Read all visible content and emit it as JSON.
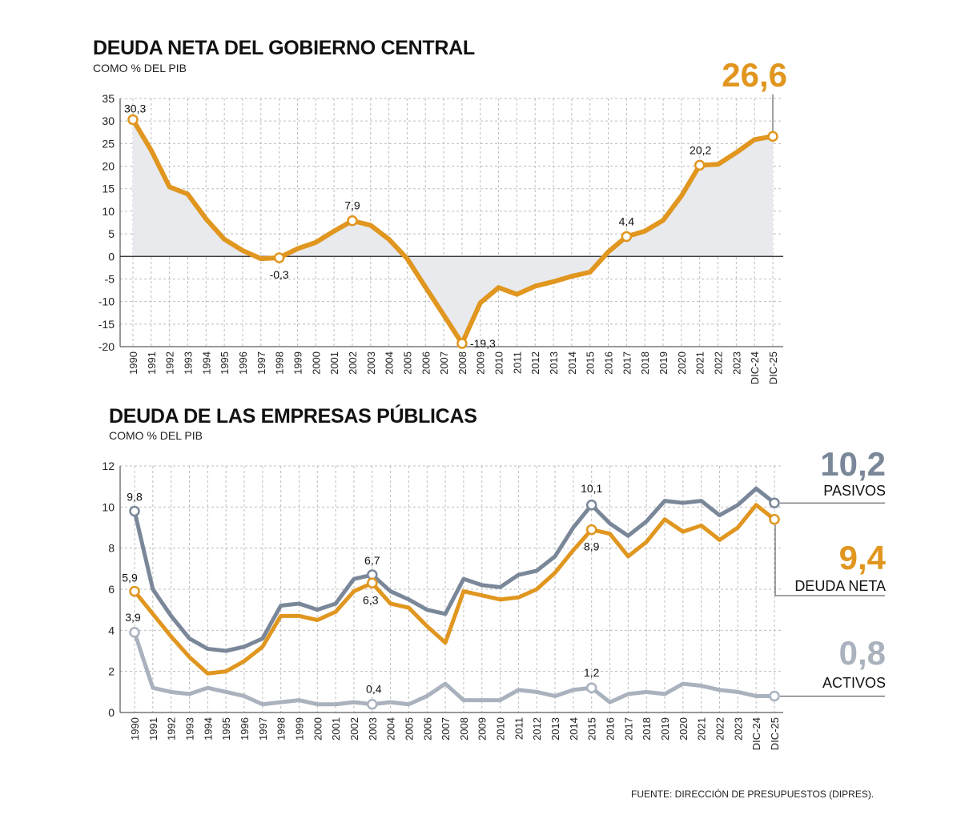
{
  "colors": {
    "orange": "#E0961F",
    "blue_gray": "#7A8799",
    "light_gray": "#A9B2BD",
    "area_fill": "#E8EAEE",
    "grid": "#BDBDBD"
  },
  "source": "FUENTE: DIRECCIÓN DE PRESUPUESTOS (DIPRES).",
  "chart_data": [
    {
      "type": "area",
      "title": "DEUDA NETA DEL GOBIERNO CENTRAL",
      "subtitle": "COMO % DEL PIB",
      "categories": [
        "1990",
        "1991",
        "1992",
        "1993",
        "1994",
        "1995",
        "1996",
        "1997",
        "1998",
        "1999",
        "2000",
        "2001",
        "2002",
        "2003",
        "2004",
        "2005",
        "2006",
        "2007",
        "2008",
        "2009",
        "2010",
        "2011",
        "2012",
        "2013",
        "2014",
        "2015",
        "2016",
        "2017",
        "2018",
        "2019",
        "2020",
        "2021",
        "2022",
        "2023",
        "DIC-24",
        "DIC-25"
      ],
      "ylim": [
        -20,
        35
      ],
      "yticks": [
        35,
        30,
        25,
        20,
        15,
        10,
        5,
        0,
        -5,
        -10,
        -15,
        -20
      ],
      "grid": true,
      "series": [
        {
          "values": [
            30.3,
            23.5,
            15.4,
            13.8,
            8.3,
            3.8,
            1.3,
            -0.5,
            -0.3,
            1.7,
            3.1,
            5.6,
            7.9,
            6.9,
            3.8,
            -0.5,
            -6.8,
            -13.0,
            -19.3,
            -10.3,
            -6.9,
            -8.4,
            -6.6,
            -5.6,
            -4.4,
            -3.5,
            1.0,
            4.4,
            5.6,
            8.0,
            13.4,
            20.2,
            20.4,
            23.0,
            25.9,
            26.6
          ],
          "markers": [
            {
              "index": 0,
              "label": "30,3"
            },
            {
              "index": 8,
              "label": "-0,3"
            },
            {
              "index": 12,
              "label": "7,9"
            },
            {
              "index": 18,
              "label": "-19,3"
            },
            {
              "index": 27,
              "label": "4,4"
            },
            {
              "index": 31,
              "label": "20,2"
            },
            {
              "index": 35,
              "label": ""
            }
          ],
          "end_callout": "26,6"
        }
      ]
    },
    {
      "type": "line",
      "title": "DEUDA DE LAS EMPRESAS PÚBLICAS",
      "subtitle": "COMO % DEL PIB",
      "categories": [
        "1990",
        "1991",
        "1992",
        "1993",
        "1994",
        "1995",
        "1996",
        "1997",
        "1998",
        "1999",
        "2000",
        "2001",
        "2002",
        "2003",
        "2004",
        "2005",
        "2006",
        "2007",
        "2008",
        "2009",
        "2010",
        "2011",
        "2012",
        "2013",
        "2014",
        "2015",
        "2016",
        "2017",
        "2018",
        "2019",
        "2020",
        "2021",
        "2022",
        "2023",
        "DIC-24",
        "DIC-25"
      ],
      "ylim": [
        0,
        12
      ],
      "yticks": [
        12,
        10,
        8,
        6,
        4,
        2,
        0
      ],
      "grid": true,
      "series": [
        {
          "name": "PASIVOS",
          "end_value": "10,2",
          "values": [
            9.8,
            6.0,
            4.7,
            3.6,
            3.1,
            3.0,
            3.2,
            3.6,
            5.2,
            5.3,
            5.0,
            5.3,
            6.5,
            6.7,
            5.9,
            5.5,
            5.0,
            4.8,
            6.5,
            6.2,
            6.1,
            6.7,
            6.9,
            7.6,
            9.0,
            10.1,
            9.2,
            8.6,
            9.3,
            10.3,
            10.2,
            10.3,
            9.6,
            10.1,
            10.9,
            10.2
          ],
          "markers": [
            {
              "index": 0,
              "label": "9,8"
            },
            {
              "index": 13,
              "label": "6,7"
            },
            {
              "index": 25,
              "label": "10,1"
            },
            {
              "index": 35,
              "label": ""
            }
          ]
        },
        {
          "name": "DEUDA NETA",
          "end_value": "9,4",
          "values": [
            5.9,
            4.8,
            3.7,
            2.7,
            1.9,
            2.0,
            2.5,
            3.2,
            4.7,
            4.7,
            4.5,
            4.9,
            5.9,
            6.3,
            5.3,
            5.1,
            4.2,
            3.4,
            5.9,
            5.7,
            5.5,
            5.6,
            6.0,
            6.8,
            7.9,
            8.9,
            8.7,
            7.6,
            8.3,
            9.4,
            8.8,
            9.1,
            8.4,
            9.0,
            10.1,
            9.4
          ],
          "markers": [
            {
              "index": 0,
              "label": "5,9"
            },
            {
              "index": 13,
              "label": "6,3"
            },
            {
              "index": 25,
              "label": "8,9"
            },
            {
              "index": 35,
              "label": ""
            }
          ]
        },
        {
          "name": "ACTIVOS",
          "end_value": "0,8",
          "values": [
            3.9,
            1.2,
            1.0,
            0.9,
            1.2,
            1.0,
            0.8,
            0.4,
            0.5,
            0.6,
            0.4,
            0.4,
            0.5,
            0.4,
            0.5,
            0.4,
            0.8,
            1.4,
            0.6,
            0.6,
            0.6,
            1.1,
            1.0,
            0.8,
            1.1,
            1.2,
            0.5,
            0.9,
            1.0,
            0.9,
            1.4,
            1.3,
            1.1,
            1.0,
            0.8,
            0.8
          ],
          "markers": [
            {
              "index": 0,
              "label": "3,9"
            },
            {
              "index": 13,
              "label": "0,4"
            },
            {
              "index": 25,
              "label": "1,2"
            },
            {
              "index": 35,
              "label": ""
            }
          ]
        }
      ]
    }
  ]
}
